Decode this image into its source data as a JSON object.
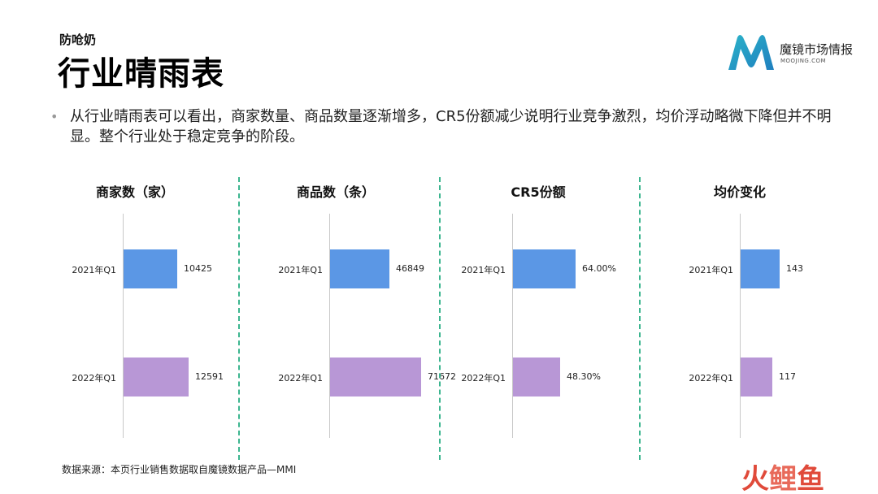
{
  "header": {
    "subtitle": "防呛奶",
    "title": "行业晴雨表"
  },
  "logo": {
    "name": "魔镜市场情报",
    "url_text": "MOOJING.COM"
  },
  "bullet": "从行业晴雨表可以看出，商家数量、商品数量逐渐增多，CR5份额减少说明行业竞争激烈，均价浮动略微下降但并不明显。整个行业处于稳定竞争的阶段。",
  "source": "数据来源：本页行业销售数据取自魔镜数据产品—MMI",
  "watermark": [
    "火",
    "鲤",
    "鱼"
  ],
  "colors": {
    "bar_2021": "#5b97e5",
    "bar_2022": "#b897d6",
    "divider": "#3cb58f"
  },
  "chart_data": [
    {
      "type": "bar",
      "orientation": "horizontal",
      "title": "商家数（家）",
      "categories": [
        "2021年Q1",
        "2022年Q1"
      ],
      "values": [
        10425,
        12591
      ],
      "value_labels": [
        "10425",
        "12591"
      ]
    },
    {
      "type": "bar",
      "orientation": "horizontal",
      "title": "商品数（条）",
      "categories": [
        "2021年Q1",
        "2022年Q1"
      ],
      "values": [
        46849,
        71672
      ],
      "value_labels": [
        "46849",
        "71672"
      ]
    },
    {
      "type": "bar",
      "orientation": "horizontal",
      "title": "CR5份额",
      "categories": [
        "2021年Q1",
        "2022年Q1"
      ],
      "values": [
        64.0,
        48.3
      ],
      "value_labels": [
        "64.00%",
        "48.30%"
      ]
    },
    {
      "type": "bar",
      "orientation": "horizontal",
      "title": "均价变化",
      "categories": [
        "2021年Q1",
        "2022年Q1"
      ],
      "values": [
        143,
        117
      ],
      "value_labels": [
        "143",
        "117"
      ]
    }
  ]
}
